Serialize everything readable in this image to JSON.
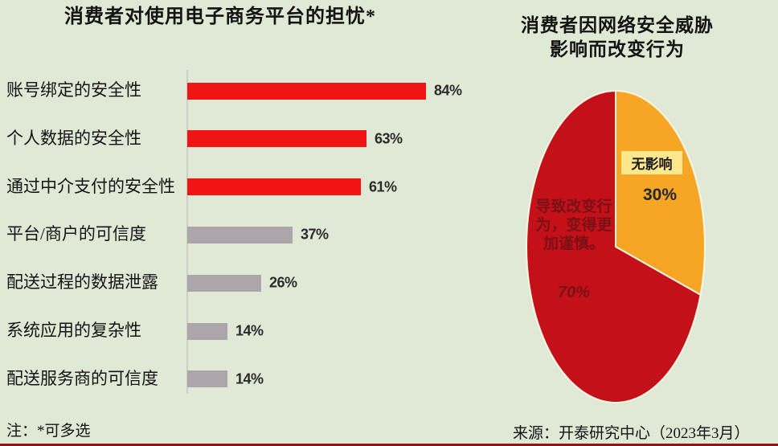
{
  "colors": {
    "background": "#dfe9d6",
    "bar_red": "#f11414",
    "bar_gray": "#aca6aa",
    "pie_red": "#c41119",
    "pie_orange": "#f6a624",
    "pie_divider": "#fdf6e3",
    "label_box_yellow": "#ffe88b",
    "dark_maroon_text": "#7a1116",
    "bottom_line": "#8e1418"
  },
  "chart_data": [
    {
      "type": "bar",
      "orientation": "horizontal",
      "title": "消费者对使用电子商务平台的担忧*",
      "categories": [
        "账号绑定的安全性",
        "个人数据的安全性",
        "通过中介支付的安全性",
        "平台/商户的可信度",
        "配送过程的数据泄露",
        "系统应用的复杂性",
        "配送服务商的可信度"
      ],
      "values": [
        84,
        63,
        61,
        37,
        26,
        14,
        14
      ],
      "value_labels": [
        "84%",
        "63%",
        "61%",
        "37%",
        "26%",
        "14%",
        "14%"
      ],
      "bar_colors": [
        "#f11414",
        "#f11414",
        "#f11414",
        "#aca6aa",
        "#aca6aa",
        "#aca6aa",
        "#aca6aa"
      ],
      "unit": "%",
      "xlim": [
        0,
        100
      ],
      "grid": false,
      "legend": "none"
    },
    {
      "type": "pie",
      "title_lines": [
        "消费者因网络安全威胁",
        "影响而改变行为"
      ],
      "start_angle": "12 o'clock",
      "direction": "clockwise",
      "slices": [
        {
          "label": "无影响",
          "value": 30,
          "value_label": "30%",
          "color": "#f6a624"
        },
        {
          "label": "导致改变行为，变得更加谨慎。",
          "value": 70,
          "value_label": "70%",
          "color": "#c41119"
        }
      ]
    }
  ],
  "footer": {
    "note": "注：*可多选",
    "source": "来源：开泰研究中心（2023年3月）"
  }
}
